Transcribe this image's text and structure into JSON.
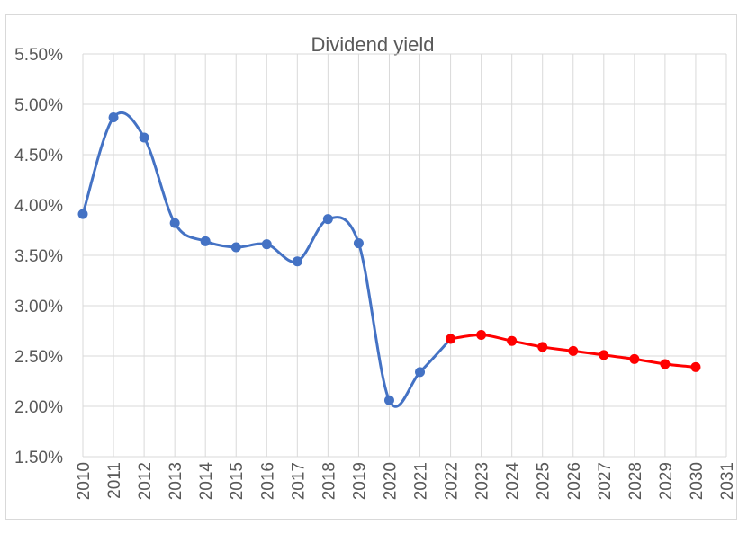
{
  "chart_data": {
    "type": "line",
    "title": "Dividend yield",
    "xlabel": "",
    "ylabel": "",
    "x_categories": [
      "2010",
      "2011",
      "2012",
      "2013",
      "2014",
      "2015",
      "2016",
      "2017",
      "2018",
      "2019",
      "2020",
      "2021",
      "2022",
      "2023",
      "2024",
      "2025",
      "2026",
      "2027",
      "2028",
      "2029",
      "2030",
      "2031"
    ],
    "y_ticks": [
      "1.50%",
      "2.00%",
      "2.50%",
      "3.00%",
      "3.50%",
      "4.00%",
      "4.50%",
      "5.00%",
      "5.50%"
    ],
    "ylim": [
      0.015,
      0.055
    ],
    "grid": true,
    "smooth": true,
    "series": [
      {
        "color": "#4472c4",
        "x": [
          "2010",
          "2011",
          "2012",
          "2013",
          "2014",
          "2015",
          "2016",
          "2017",
          "2018",
          "2019",
          "2020",
          "2021",
          "2022"
        ],
        "values": [
          0.0391,
          0.0487,
          0.0467,
          0.0382,
          0.0364,
          0.0358,
          0.0361,
          0.0344,
          0.0386,
          0.0362,
          0.0206,
          0.0234,
          0.0267
        ]
      },
      {
        "color": "#ff0000",
        "x": [
          "2022",
          "2023",
          "2024",
          "2025",
          "2026",
          "2027",
          "2028",
          "2029",
          "2030"
        ],
        "values": [
          0.0267,
          0.0271,
          0.0265,
          0.0259,
          0.0255,
          0.0251,
          0.0247,
          0.0242,
          0.0239
        ]
      }
    ]
  }
}
